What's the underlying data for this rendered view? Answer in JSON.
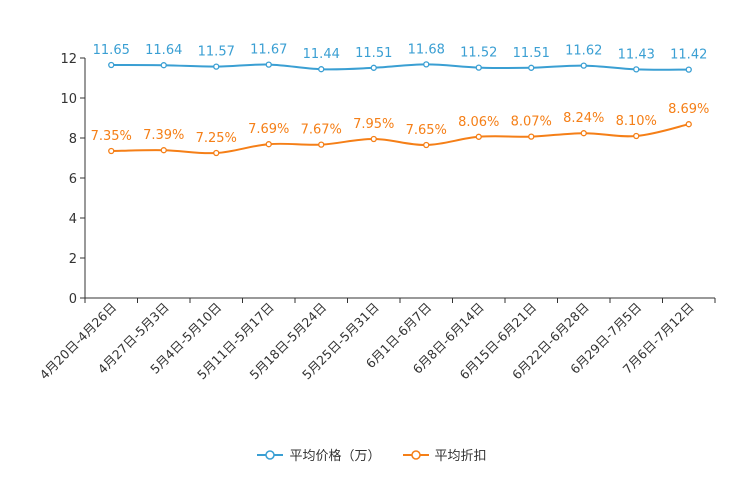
{
  "chart_data": {
    "type": "line",
    "categories": [
      "4月20日-4月26日",
      "4月27日-5月3日",
      "5月4日-5月10日",
      "5月11日-5月17日",
      "5月18日-5月24日",
      "5月25日-5月31日",
      "6月1日-6月7日",
      "6月8日-6月14日",
      "6月15日-6月21日",
      "6月22日-6月28日",
      "6月29日-7月5日",
      "7月6日-7月12日"
    ],
    "ylim": [
      0,
      12
    ],
    "yticks": [
      0,
      2,
      4,
      6,
      8,
      10,
      12
    ],
    "series": [
      {
        "name": "平均价格（万）",
        "color": "#3a9fd3",
        "values": [
          11.65,
          11.64,
          11.57,
          11.67,
          11.44,
          11.51,
          11.68,
          11.52,
          11.51,
          11.62,
          11.43,
          11.42
        ],
        "labels": [
          "11.65",
          "11.64",
          "11.57",
          "11.67",
          "11.44",
          "11.51",
          "11.68",
          "11.52",
          "11.51",
          "11.62",
          "11.43",
          "11.42"
        ]
      },
      {
        "name": "平均折扣",
        "color": "#f57f17",
        "values": [
          7.35,
          7.39,
          7.25,
          7.69,
          7.67,
          7.95,
          7.65,
          8.06,
          8.07,
          8.24,
          8.1,
          8.69
        ],
        "labels": [
          "7.35%",
          "7.39%",
          "7.25%",
          "7.69%",
          "7.67%",
          "7.95%",
          "7.65%",
          "8.06%",
          "8.07%",
          "8.24%",
          "8.10%",
          "8.69%"
        ]
      }
    ],
    "legend_position": "bottom"
  },
  "legend": {
    "price": "平均价格（万）",
    "discount": "平均折扣"
  }
}
